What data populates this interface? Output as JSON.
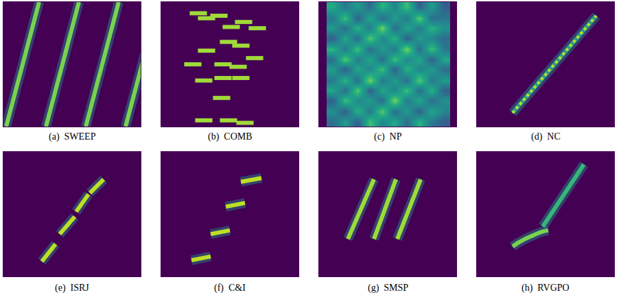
{
  "chart_data": [
    {
      "type": "line",
      "title": "(a)  SWEEP",
      "xlim": [
        0,
        100
      ],
      "ylim": [
        0,
        100
      ],
      "tick_labels": false,
      "series": [
        {
          "color": "#7ad151",
          "x": [
            2,
            26
          ],
          "y": [
            0,
            100
          ]
        },
        {
          "color": "#7ad151",
          "x": [
            31,
            55
          ],
          "y": [
            0,
            100
          ]
        },
        {
          "color": "#7ad151",
          "x": [
            60,
            84
          ],
          "y": [
            0,
            100
          ]
        },
        {
          "color": "#7ad151",
          "x": [
            89,
            113
          ],
          "y": [
            0,
            100
          ]
        }
      ]
    },
    {
      "type": "scatter",
      "title": "(b)  COMB",
      "xlim": [
        0,
        100
      ],
      "ylim": [
        0,
        100
      ],
      "tick_labels": false,
      "marker": "line-ew",
      "series": [
        {
          "color": "#a0da39",
          "x": [
            27,
            33,
            42,
            51,
            60,
            70,
            49,
            33,
            58,
            68,
            23,
            45,
            56,
            31,
            45,
            58,
            44,
            31,
            49,
            61
          ],
          "y": [
            91,
            87,
            89,
            80,
            84,
            79,
            68,
            61,
            65,
            55,
            50,
            50,
            48,
            37,
            39,
            39,
            23,
            5,
            5,
            3
          ]
        }
      ]
    },
    {
      "type": "heatmap",
      "title": "(c)  NP",
      "xlim": [
        0,
        100
      ],
      "ylim": [
        0,
        100
      ],
      "tick_labels": false,
      "zlim": [
        0,
        1
      ],
      "x": [
        10,
        19,
        28,
        37,
        46,
        55,
        64,
        73,
        82,
        91
      ],
      "y": [
        4,
        12,
        21,
        29,
        37,
        46,
        54,
        62,
        71,
        79,
        87,
        96
      ],
      "z": [
        [
          0.35,
          0.55,
          0.3,
          0.7,
          0.45,
          0.6,
          0.35,
          0.65,
          0.4,
          0.3
        ],
        [
          0.5,
          0.3,
          0.65,
          0.4,
          0.75,
          0.35,
          0.55,
          0.3,
          0.6,
          0.45
        ],
        [
          0.3,
          0.7,
          0.45,
          0.55,
          0.35,
          0.8,
          0.4,
          0.6,
          0.35,
          0.5
        ],
        [
          0.6,
          0.35,
          0.75,
          0.3,
          0.6,
          0.45,
          0.7,
          0.35,
          0.65,
          0.3
        ],
        [
          0.4,
          0.65,
          0.35,
          0.8,
          0.4,
          0.55,
          0.35,
          0.75,
          0.4,
          0.55
        ],
        [
          0.55,
          0.3,
          0.6,
          0.45,
          0.7,
          0.3,
          0.65,
          0.45,
          0.55,
          0.35
        ],
        [
          0.35,
          0.75,
          0.4,
          0.6,
          0.35,
          0.7,
          0.45,
          0.6,
          0.3,
          0.6
        ],
        [
          0.65,
          0.4,
          0.7,
          0.35,
          0.55,
          0.4,
          0.8,
          0.35,
          0.7,
          0.4
        ],
        [
          0.3,
          0.6,
          0.35,
          0.75,
          0.45,
          0.65,
          0.3,
          0.55,
          0.45,
          0.35
        ],
        [
          0.55,
          0.35,
          0.65,
          0.4,
          0.8,
          0.35,
          0.6,
          0.4,
          0.65,
          0.5
        ],
        [
          0.4,
          0.7,
          0.3,
          0.6,
          0.35,
          0.55,
          0.4,
          0.75,
          0.35,
          0.4
        ],
        [
          0.6,
          0.4,
          0.55,
          0.35,
          0.65,
          0.45,
          0.7,
          0.3,
          0.55,
          0.3
        ]
      ]
    },
    {
      "type": "line",
      "title": "(d)  NC",
      "xlim": [
        0,
        100
      ],
      "ylim": [
        0,
        100
      ],
      "tick_labels": false,
      "series": [
        {
          "color": "#2a9d8a",
          "line_style": "solid",
          "x": [
            26,
            87
          ],
          "y": [
            11,
            89
          ]
        },
        {
          "color": "#bddf26",
          "line_style": "dot",
          "x": [
            26,
            87
          ],
          "y": [
            11,
            89
          ]
        }
      ]
    },
    {
      "type": "line",
      "title": "(e)  ISRJ",
      "xlim": [
        0,
        100
      ],
      "ylim": [
        0,
        100
      ],
      "tick_labels": false,
      "series": [
        {
          "color": "#bddf26",
          "x": [
            28,
            38
          ],
          "y": [
            12,
            26
          ]
        },
        {
          "color": "#bddf26",
          "x": [
            41,
            52
          ],
          "y": [
            34,
            48
          ]
        },
        {
          "color": "#bddf26",
          "x": [
            53,
            62
          ],
          "y": [
            52,
            66
          ]
        },
        {
          "color": "#bddf26",
          "x": [
            63,
            73
          ],
          "y": [
            67,
            78
          ]
        }
      ]
    },
    {
      "type": "line",
      "title": "(f)  C&I",
      "xlim": [
        0,
        100
      ],
      "ylim": [
        0,
        100
      ],
      "tick_labels": false,
      "series": [
        {
          "color": "#bddf26",
          "x": [
            22,
            36
          ],
          "y": [
            13,
            16
          ]
        },
        {
          "color": "#bddf26",
          "x": [
            36,
            50
          ],
          "y": [
            34,
            37
          ]
        },
        {
          "color": "#bddf26",
          "x": [
            47,
            61
          ],
          "y": [
            56,
            59
          ]
        },
        {
          "color": "#bddf26",
          "x": [
            58,
            73
          ],
          "y": [
            76,
            79
          ]
        }
      ]
    },
    {
      "type": "line",
      "title": "(g)  SMSP",
      "xlim": [
        0,
        100
      ],
      "ylim": [
        0,
        100
      ],
      "tick_labels": false,
      "series": [
        {
          "color": "#a0da39",
          "x": [
            21,
            40
          ],
          "y": [
            30,
            78
          ]
        },
        {
          "color": "#a0da39",
          "x": [
            40,
            56
          ],
          "y": [
            30,
            78
          ]
        },
        {
          "color": "#a0da39",
          "x": [
            57,
            74
          ],
          "y": [
            30,
            78
          ]
        }
      ]
    },
    {
      "type": "line",
      "title": "(h)  RVGPO",
      "xlim": [
        0,
        100
      ],
      "ylim": [
        0,
        100
      ],
      "tick_labels": false,
      "series": [
        {
          "color": "#7ad151",
          "x": [
            26,
            30,
            35,
            41,
            48,
            52
          ],
          "y": [
            24,
            27,
            30,
            33,
            36,
            37
          ]
        },
        {
          "color": "#35b779",
          "x": [
            48,
            78
          ],
          "y": [
            40,
            90
          ]
        }
      ]
    }
  ]
}
